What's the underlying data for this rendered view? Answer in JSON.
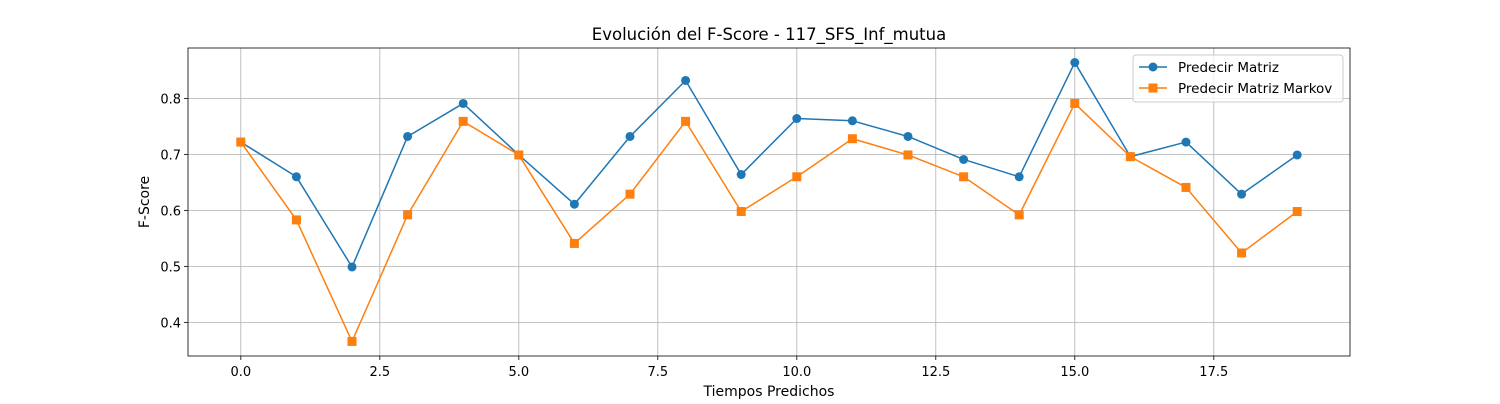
{
  "chart_data": {
    "type": "line",
    "title": "Evolución del F-Score - 117_SFS_Inf_mutua",
    "xlabel": "Tiempos Predichos",
    "ylabel": "F-Score",
    "xlim": [
      -0.95,
      19.95
    ],
    "ylim": [
      0.34,
      0.89
    ],
    "xticks": [
      0.0,
      2.5,
      5.0,
      7.5,
      10.0,
      12.5,
      15.0,
      17.5
    ],
    "xtick_labels": [
      "0.0",
      "2.5",
      "5.0",
      "7.5",
      "10.0",
      "12.5",
      "15.0",
      "17.5"
    ],
    "yticks": [
      0.4,
      0.5,
      0.6,
      0.7,
      0.8
    ],
    "ytick_labels": [
      "0.4",
      "0.5",
      "0.6",
      "0.7",
      "0.8"
    ],
    "grid": true,
    "legend_position": "top-right",
    "x": [
      0,
      1,
      2,
      3,
      4,
      5,
      6,
      7,
      8,
      9,
      10,
      11,
      12,
      13,
      14,
      15,
      16,
      17,
      18,
      19
    ],
    "series": [
      {
        "name": "Predecir Matriz",
        "color": "#1f77b4",
        "marker": "circle",
        "values": [
          0.722,
          0.66,
          0.499,
          0.732,
          0.791,
          0.699,
          0.611,
          0.732,
          0.832,
          0.664,
          0.764,
          0.76,
          0.732,
          0.691,
          0.66,
          0.864,
          0.696,
          0.722,
          0.629,
          0.699
        ]
      },
      {
        "name": "Predecir Matriz Markov",
        "color": "#ff7f0e",
        "marker": "square",
        "values": [
          0.722,
          0.583,
          0.366,
          0.592,
          0.759,
          0.699,
          0.541,
          0.629,
          0.759,
          0.598,
          0.66,
          0.728,
          0.699,
          0.66,
          0.592,
          0.791,
          0.696,
          0.641,
          0.524,
          0.598
        ]
      }
    ]
  }
}
